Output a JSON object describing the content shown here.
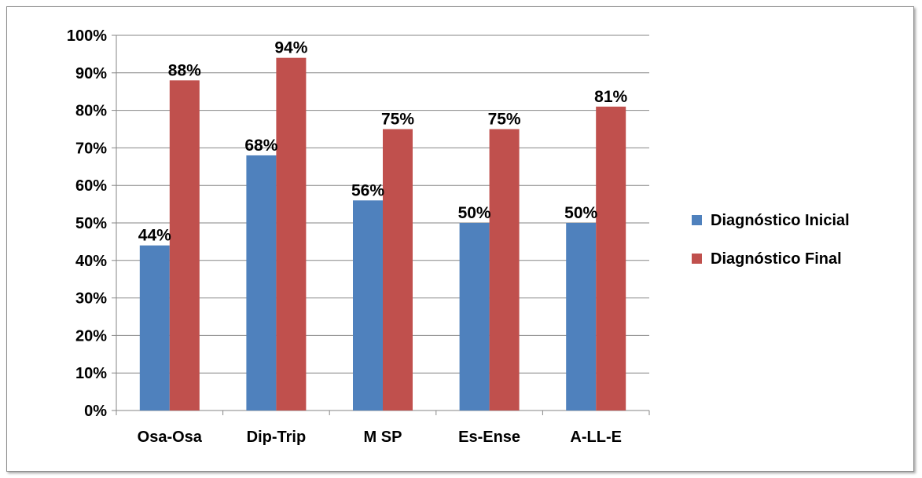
{
  "chart_data": {
    "type": "bar",
    "categories": [
      "Osa-Osa",
      "Dip-Trip",
      "M SP",
      "Es-Ense",
      "A-LL-E"
    ],
    "series": [
      {
        "name": "Diagnóstico Inicial",
        "values": [
          44,
          68,
          56,
          50,
          50
        ],
        "labels": [
          "44%",
          "68%",
          "56%",
          "50%",
          "50%"
        ],
        "color": "#4F81BD"
      },
      {
        "name": "Diagnóstico Final",
        "values": [
          88,
          94,
          75,
          75,
          81
        ],
        "labels": [
          "88%",
          "94%",
          "75%",
          "75%",
          "81%"
        ],
        "color": "#C0504D"
      }
    ],
    "ylim": [
      0,
      100
    ],
    "yticks": [
      "0%",
      "10%",
      "20%",
      "30%",
      "40%",
      "50%",
      "60%",
      "70%",
      "80%",
      "90%",
      "100%"
    ],
    "grid": true,
    "legend_position": "right",
    "title": "",
    "xlabel": "",
    "ylabel": ""
  }
}
